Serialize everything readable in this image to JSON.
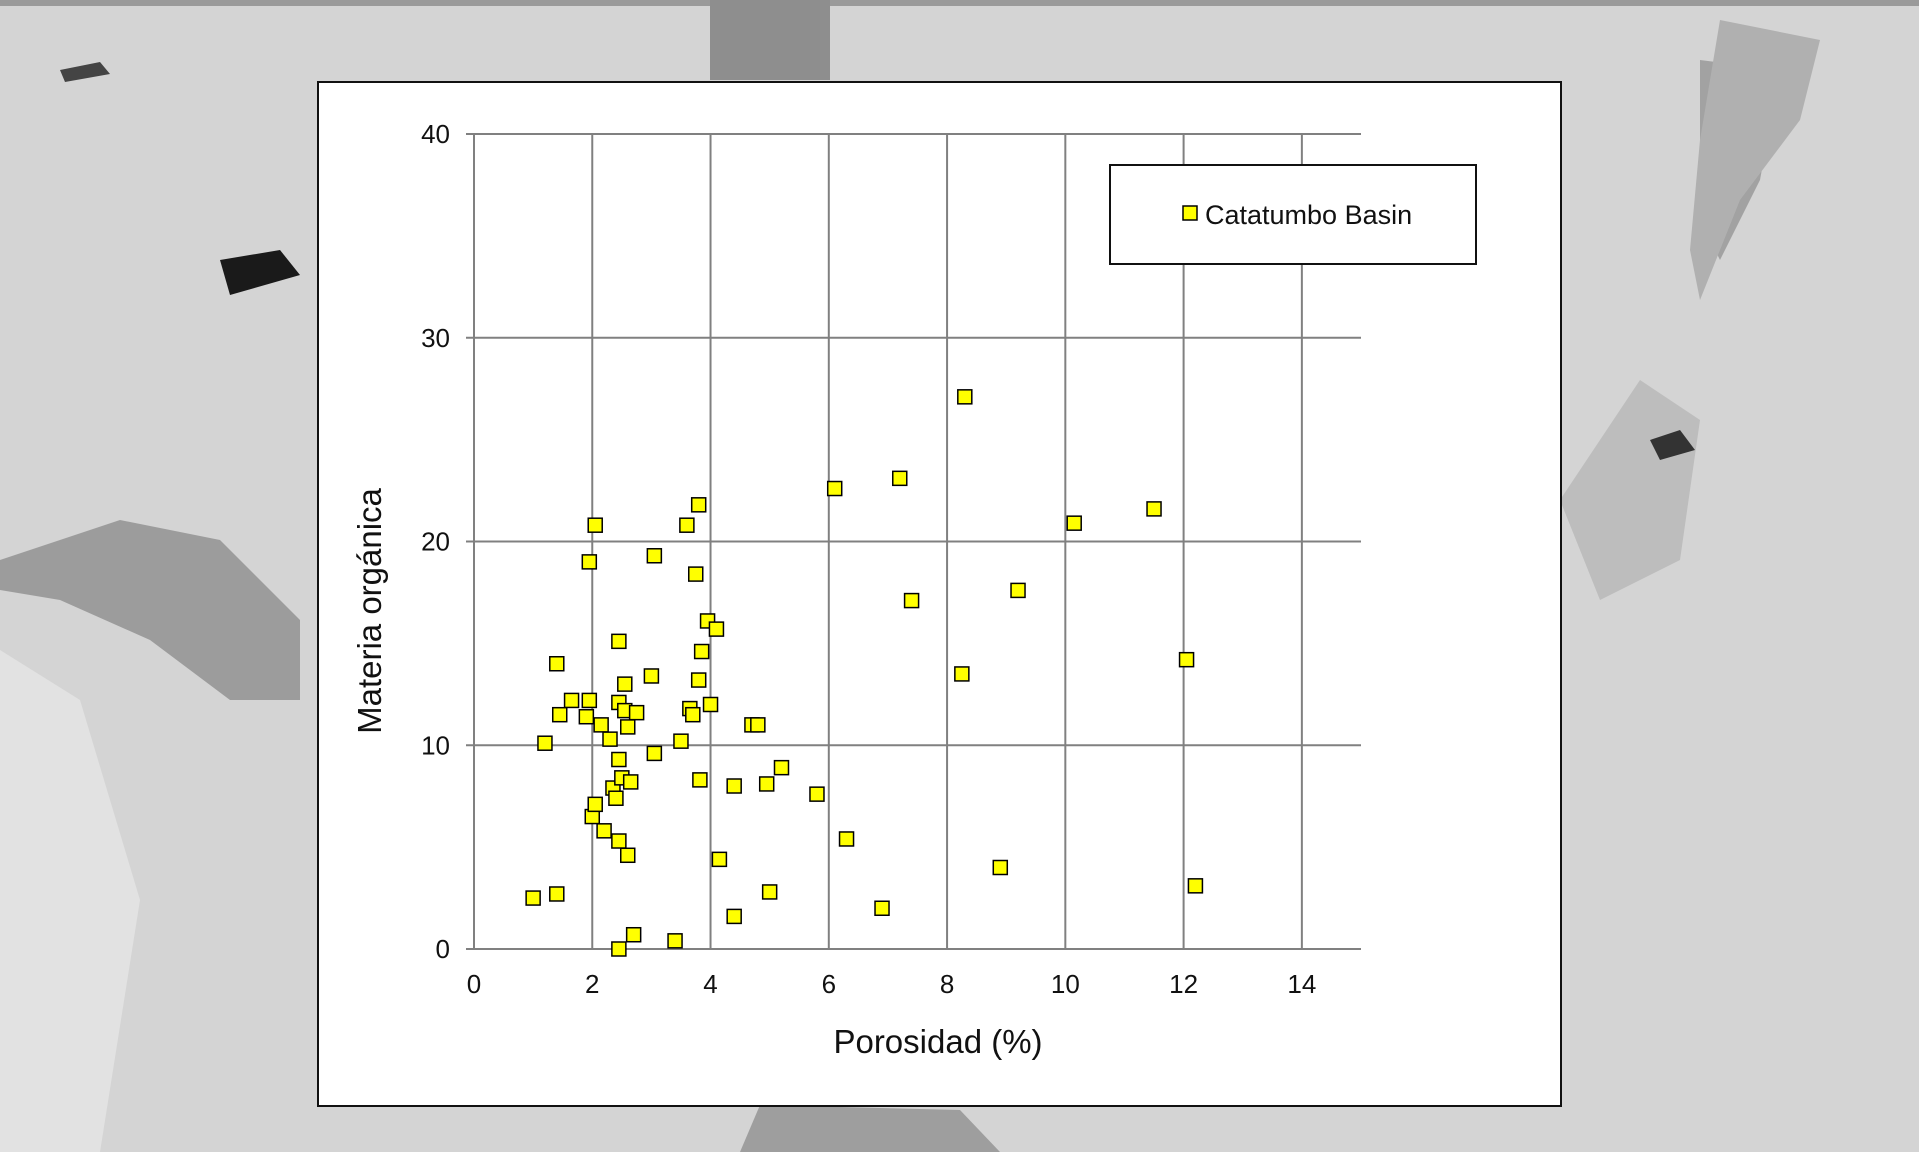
{
  "colors": {
    "marker_fill": "#ffff00",
    "marker_stroke": "#000000",
    "grid": "#808080",
    "background_texture": "#d6d6d6"
  },
  "chart_data": {
    "type": "scatter",
    "title": "",
    "xlabel": "Porosidad (%)",
    "ylabel": "Materia orgánica",
    "xlim": [
      0,
      15
    ],
    "ylim": [
      0,
      40
    ],
    "x_ticks": [
      0,
      2,
      4,
      6,
      8,
      10,
      12,
      14
    ],
    "y_ticks": [
      0,
      10,
      20,
      30,
      40
    ],
    "grid": true,
    "legend_position": "top-right",
    "marker": "square",
    "series": [
      {
        "name": "Catatumbo Basin",
        "points": [
          [
            1.0,
            2.5
          ],
          [
            1.4,
            2.7
          ],
          [
            1.2,
            10.1
          ],
          [
            1.4,
            14.0
          ],
          [
            1.45,
            11.5
          ],
          [
            1.65,
            12.2
          ],
          [
            1.9,
            11.4
          ],
          [
            1.95,
            12.2
          ],
          [
            1.95,
            19.0
          ],
          [
            2.05,
            20.8
          ],
          [
            2.0,
            6.5
          ],
          [
            2.05,
            7.1
          ],
          [
            2.15,
            11.0
          ],
          [
            2.2,
            5.8
          ],
          [
            2.3,
            10.3
          ],
          [
            2.35,
            7.9
          ],
          [
            2.4,
            7.4
          ],
          [
            2.45,
            9.3
          ],
          [
            2.45,
            15.1
          ],
          [
            2.45,
            12.1
          ],
          [
            2.45,
            5.3
          ],
          [
            2.5,
            8.4
          ],
          [
            2.45,
            0.0
          ],
          [
            2.55,
            13.0
          ],
          [
            2.55,
            11.7
          ],
          [
            2.6,
            4.6
          ],
          [
            2.6,
            10.9
          ],
          [
            2.65,
            8.2
          ],
          [
            2.7,
            0.7
          ],
          [
            2.75,
            11.6
          ],
          [
            3.0,
            13.4
          ],
          [
            3.05,
            9.6
          ],
          [
            3.05,
            19.3
          ],
          [
            3.4,
            0.4
          ],
          [
            3.5,
            10.2
          ],
          [
            3.6,
            20.8
          ],
          [
            3.65,
            11.8
          ],
          [
            3.7,
            11.5
          ],
          [
            3.75,
            18.4
          ],
          [
            3.8,
            21.8
          ],
          [
            3.8,
            13.2
          ],
          [
            3.82,
            8.3
          ],
          [
            3.85,
            14.6
          ],
          [
            3.95,
            16.1
          ],
          [
            4.0,
            12.0
          ],
          [
            4.1,
            15.7
          ],
          [
            4.15,
            4.4
          ],
          [
            4.4,
            8.0
          ],
          [
            4.4,
            1.6
          ],
          [
            4.7,
            11.0
          ],
          [
            4.8,
            11.0
          ],
          [
            4.95,
            8.1
          ],
          [
            5.0,
            2.8
          ],
          [
            5.2,
            8.9
          ],
          [
            5.8,
            7.6
          ],
          [
            6.1,
            22.6
          ],
          [
            6.3,
            5.4
          ],
          [
            6.9,
            2.0
          ],
          [
            7.2,
            23.1
          ],
          [
            7.4,
            17.1
          ],
          [
            8.25,
            13.5
          ],
          [
            8.3,
            27.1
          ],
          [
            8.9,
            4.0
          ],
          [
            9.2,
            17.6
          ],
          [
            10.15,
            20.9
          ],
          [
            11.5,
            21.6
          ],
          [
            12.05,
            14.2
          ],
          [
            12.2,
            3.1
          ]
        ]
      }
    ]
  }
}
